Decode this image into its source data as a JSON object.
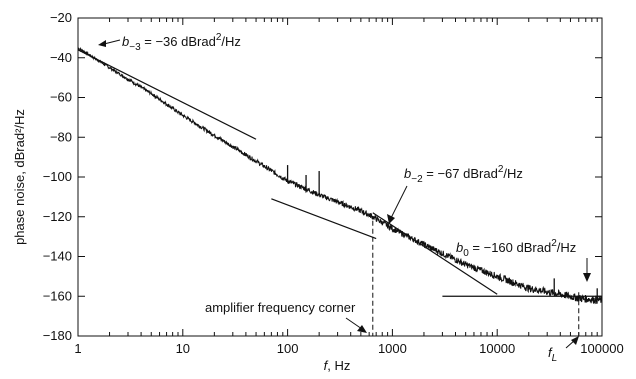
{
  "chart_data": {
    "type": "line",
    "title": "",
    "xlabel": "f, Hz",
    "ylabel": "phase noise, dBrad²/Hz",
    "x_scale": "log",
    "xlim": [
      1,
      100000
    ],
    "ylim": [
      -180,
      -20
    ],
    "x_ticks": [
      1,
      10,
      100,
      1000,
      10000,
      100000
    ],
    "x_tick_labels": [
      "1",
      "10",
      "100",
      "1000",
      "10000",
      "100000"
    ],
    "y_ticks": [
      -20,
      -40,
      -60,
      -80,
      -100,
      -120,
      -140,
      -160,
      -180
    ],
    "y_tick_labels": [
      "−20",
      "−40",
      "−60",
      "−80",
      "−100",
      "−120",
      "−140",
      "−160",
      "−180"
    ],
    "grid": false,
    "legend": "none",
    "series": [
      {
        "x": [
          1,
          2,
          5,
          10,
          20,
          50,
          100,
          200,
          500,
          650,
          1000,
          2000,
          5000,
          10000,
          20000,
          50000,
          60000,
          100000
        ],
        "y": [
          -35,
          -45,
          -58,
          -69,
          -79,
          -92,
          -102,
          -109,
          -117,
          -120,
          -126,
          -134,
          -144,
          -150,
          -156,
          -160,
          -161,
          -162
        ]
      }
    ],
    "spurs": [
      {
        "x": 100,
        "y": -94
      },
      {
        "x": 150,
        "y": -99
      },
      {
        "x": 200,
        "y": -97
      },
      {
        "x": 35000,
        "y": -151
      },
      {
        "x": 90000,
        "y": -156
      }
    ],
    "fit_lines": [
      {
        "x": [
          1,
          50
        ],
        "y": [
          -36,
          -81
        ]
      },
      {
        "x": [
          70,
          700
        ],
        "y": [
          -111,
          -131
        ]
      },
      {
        "x": [
          650,
          10000
        ],
        "y": [
          -118,
          -159
        ]
      },
      {
        "x": [
          3000,
          100000
        ],
        "y": [
          -160,
          -160
        ]
      }
    ],
    "markers": [
      {
        "x": 650,
        "y_from": -122,
        "y_to": -180
      },
      {
        "x": 60000,
        "y_from": -158,
        "y_to": -180
      }
    ],
    "annotations": {
      "b_m3": {
        "prefix": "b",
        "sub": "−3",
        "value": " = −36 dBrad",
        "sup": "2",
        "unit": "/Hz"
      },
      "b_m2": {
        "prefix": "b",
        "sub": "−2",
        "value": " = −67 dBrad",
        "sup": "2",
        "unit": "/Hz"
      },
      "b_0": {
        "prefix": "b",
        "sub": "0",
        "value": " = −160 dBrad",
        "sup": "2",
        "unit": "/Hz"
      },
      "corner": "amplifier frequency corner",
      "fL_base": "f",
      "fL_sub": "L"
    }
  }
}
